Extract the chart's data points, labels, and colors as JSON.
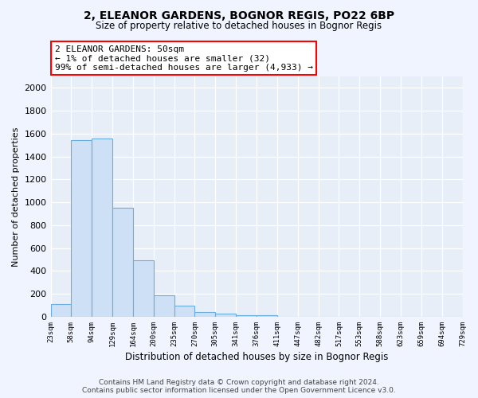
{
  "title_line1": "2, ELEANOR GARDENS, BOGNOR REGIS, PO22 6BP",
  "title_line2": "Size of property relative to detached houses in Bognor Regis",
  "xlabel": "Distribution of detached houses by size in Bognor Regis",
  "ylabel": "Number of detached properties",
  "annotation_line1": "2 ELEANOR GARDENS: 50sqm",
  "annotation_line2": "← 1% of detached houses are smaller (32)",
  "annotation_line3": "99% of semi-detached houses are larger (4,933) →",
  "bin_labels": [
    "23sqm",
    "58sqm",
    "94sqm",
    "129sqm",
    "164sqm",
    "200sqm",
    "235sqm",
    "270sqm",
    "305sqm",
    "341sqm",
    "376sqm",
    "411sqm",
    "447sqm",
    "482sqm",
    "517sqm",
    "553sqm",
    "588sqm",
    "623sqm",
    "659sqm",
    "694sqm",
    "729sqm"
  ],
  "bar_values": [
    110,
    1540,
    1560,
    950,
    490,
    185,
    100,
    40,
    28,
    15,
    15,
    0,
    0,
    0,
    0,
    0,
    0,
    0,
    0,
    0,
    0
  ],
  "bar_color": "#cde0f5",
  "bar_edge_color": "#6aaee0",
  "background_color": "#e8eef8",
  "fig_background": "#f0f4ff",
  "ylim": [
    0,
    2100
  ],
  "yticks": [
    0,
    200,
    400,
    600,
    800,
    1000,
    1200,
    1400,
    1600,
    1800,
    2000
  ],
  "footer_line1": "Contains HM Land Registry data © Crown copyright and database right 2024.",
  "footer_line2": "Contains public sector information licensed under the Open Government Licence v3.0."
}
